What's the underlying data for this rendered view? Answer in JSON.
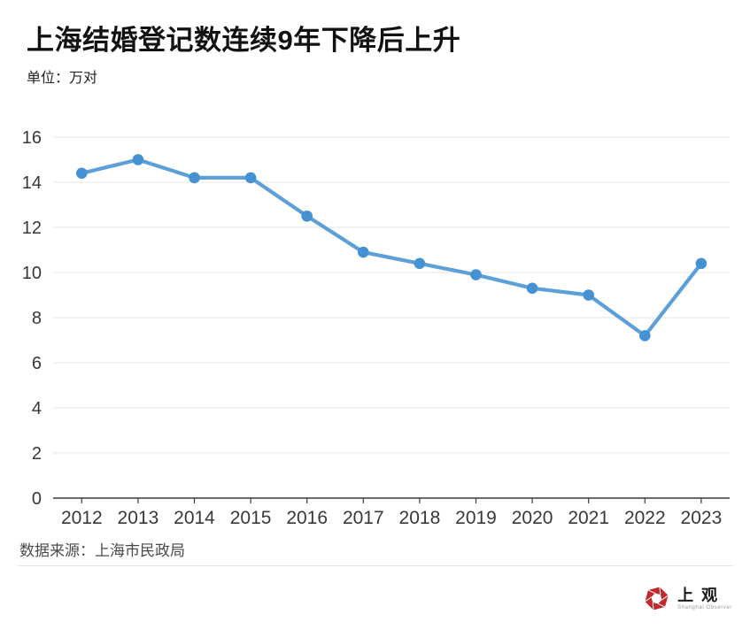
{
  "header": {
    "title": "上海结婚登记数连续9年下降后上升",
    "unit_label": "单位：万对"
  },
  "chart_data": {
    "type": "line",
    "title": "上海结婚登记数连续9年下降后上升",
    "unit": "万对",
    "categories": [
      "2012",
      "2013",
      "2014",
      "2015",
      "2016",
      "2017",
      "2018",
      "2019",
      "2020",
      "2021",
      "2022",
      "2023"
    ],
    "series": [
      {
        "name": "结婚登记数",
        "values": [
          14.4,
          15.0,
          14.2,
          14.2,
          12.5,
          10.9,
          10.4,
          9.9,
          9.3,
          9.0,
          7.2,
          10.4
        ]
      }
    ],
    "xlabel": "",
    "ylabel": "",
    "ylim": [
      0,
      16
    ],
    "ytick_step": 2,
    "grid": true,
    "legend_position": "none",
    "line_color": "#5da0d8",
    "marker_color": "#4492d2",
    "gridline_color": "#e7e7e7",
    "axis_color": "#3a3a3a",
    "tick_label_color": "#383838"
  },
  "footer": {
    "source": "数据来源：上海市民政局"
  },
  "logo": {
    "name": "上观",
    "subtitle": "Shanghai Observer",
    "brand_color": "#bf2a2e"
  }
}
